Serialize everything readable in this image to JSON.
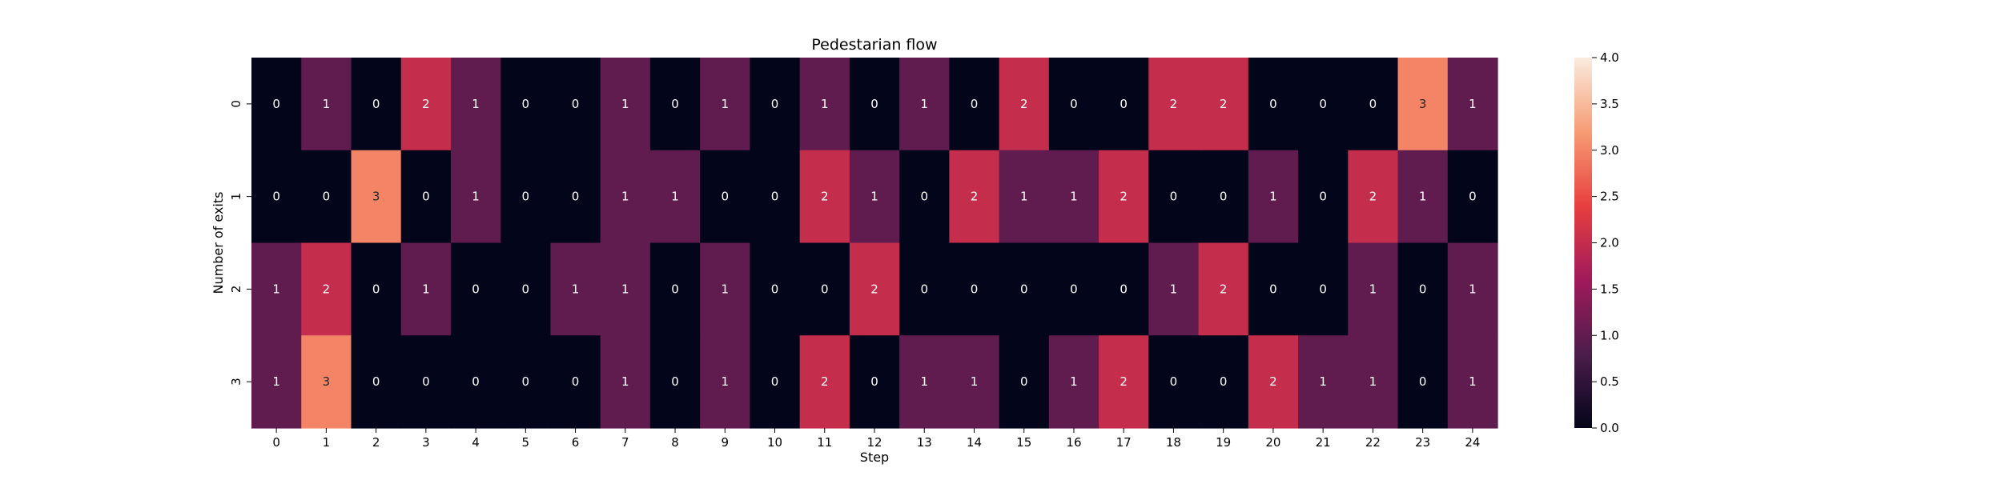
{
  "chart_data": {
    "type": "heatmap",
    "title": "Pedestarian flow",
    "xlabel": "Step",
    "ylabel": "Number of exits",
    "x_categories": [
      "0",
      "1",
      "2",
      "3",
      "4",
      "5",
      "6",
      "7",
      "8",
      "9",
      "10",
      "11",
      "12",
      "13",
      "14",
      "15",
      "16",
      "17",
      "18",
      "19",
      "20",
      "21",
      "22",
      "23",
      "24"
    ],
    "y_categories": [
      "0",
      "1",
      "2",
      "3"
    ],
    "values": [
      [
        0,
        1,
        0,
        2,
        1,
        0,
        0,
        1,
        0,
        1,
        0,
        1,
        0,
        1,
        0,
        2,
        0,
        0,
        2,
        2,
        0,
        0,
        0,
        3,
        1
      ],
      [
        0,
        0,
        3,
        0,
        1,
        0,
        0,
        1,
        1,
        0,
        0,
        2,
        1,
        0,
        2,
        1,
        1,
        2,
        0,
        0,
        1,
        0,
        2,
        1,
        0
      ],
      [
        1,
        2,
        0,
        1,
        0,
        0,
        1,
        1,
        0,
        1,
        0,
        0,
        2,
        0,
        0,
        0,
        0,
        0,
        1,
        2,
        0,
        0,
        1,
        0,
        1
      ],
      [
        1,
        3,
        0,
        0,
        0,
        0,
        0,
        1,
        0,
        1,
        0,
        2,
        0,
        1,
        1,
        0,
        1,
        2,
        0,
        0,
        2,
        1,
        1,
        0,
        1
      ]
    ],
    "annotate": true,
    "colorbar": {
      "vmin": 0,
      "vmax": 4,
      "ticks": [
        0,
        0.5,
        1,
        1.5,
        2,
        2.5,
        3,
        3.5,
        4
      ],
      "tick_labels": [
        "0.0",
        "0.5",
        "1.0",
        "1.5",
        "2.0",
        "2.5",
        "3.0",
        "3.5",
        "4.0"
      ],
      "colormap": "rocket",
      "color_stops": [
        "#03051a",
        "#4c1d4b",
        "#a11a5b",
        "#e83f3f",
        "#f69c73",
        "#faebdd"
      ]
    }
  }
}
